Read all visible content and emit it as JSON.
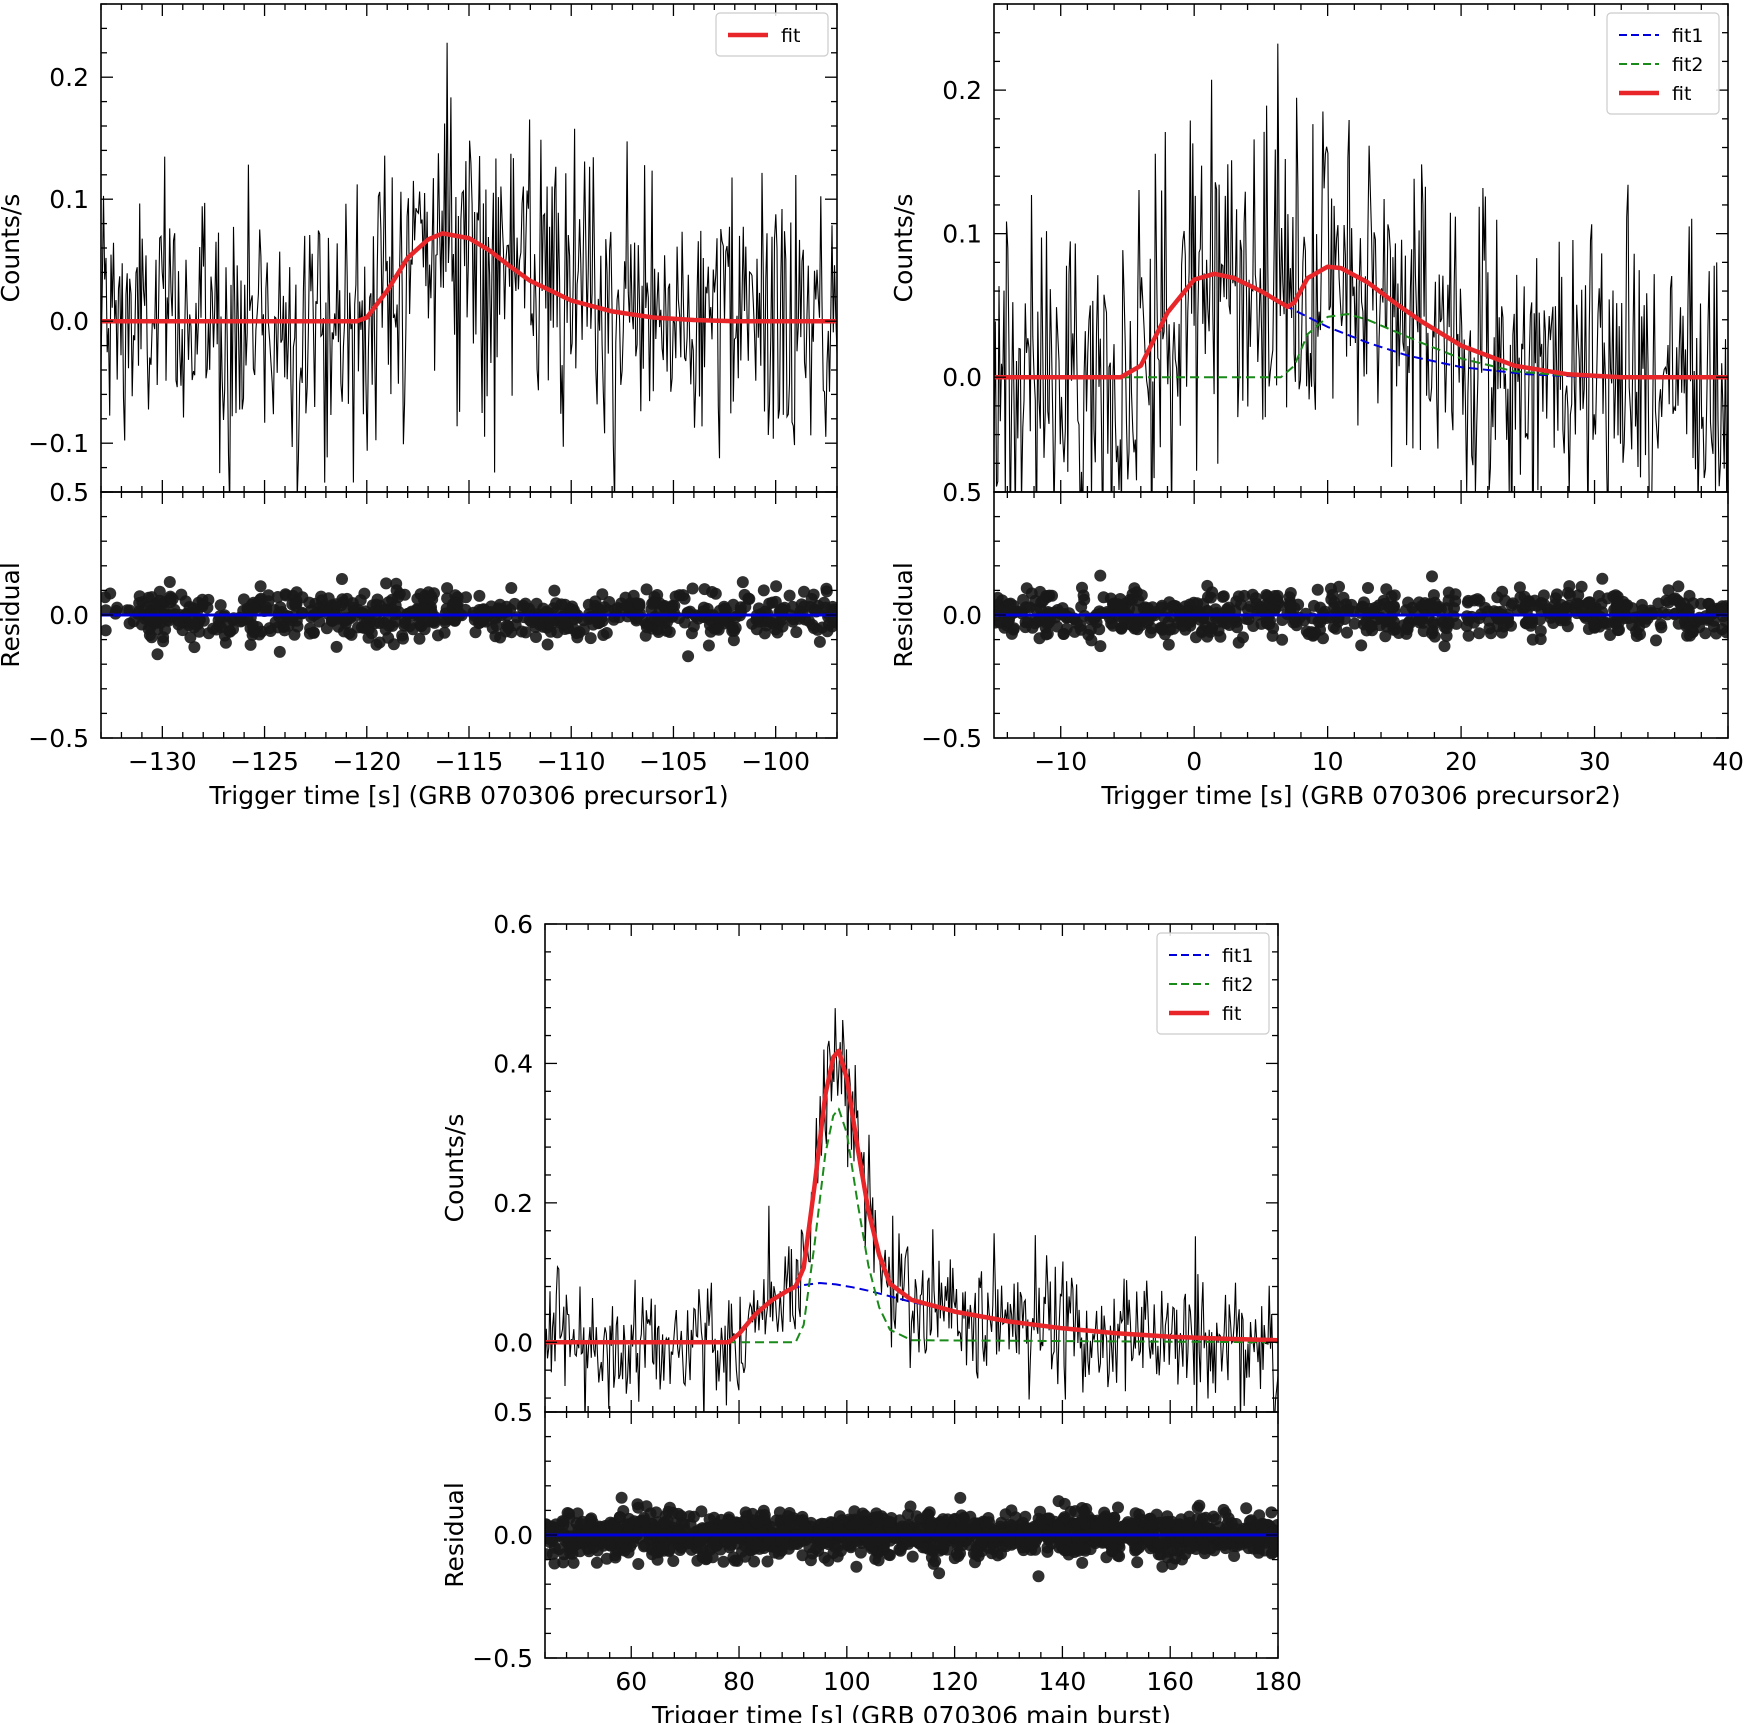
{
  "chart_data": [
    {
      "type": "line",
      "ylabel": "Counts/s",
      "residual_ylabel": "Residual",
      "xlabel": "Trigger time [s] (GRB 070306 precursor1)",
      "xlim": [
        -133,
        -97
      ],
      "ylim": [
        -0.14,
        0.26
      ],
      "residual_ylim": [
        -0.5,
        0.5
      ],
      "xticks": [
        -130,
        -125,
        -120,
        -115,
        -110,
        -105,
        -100
      ],
      "xtick_labels": [
        "−130",
        "−125",
        "−120",
        "−115",
        "−110",
        "−105",
        "−100"
      ],
      "yticks": [
        -0.1,
        0.0,
        0.1,
        0.2
      ],
      "ytick_labels": [
        "−0.1",
        "0.0",
        "0.1",
        "0.2"
      ],
      "residual_yticks": [
        -0.5,
        0.0,
        0.5
      ],
      "residual_ytick_labels": [
        "−0.5",
        "0.0",
        "0.5"
      ],
      "legend": {
        "placement": "top-right",
        "entries": [
          "fit"
        ]
      },
      "series": [
        {
          "name": "data",
          "kind": "lightcurve",
          "noise_sd": 0.055,
          "color": "#000000"
        },
        {
          "name": "fit",
          "kind": "pulse",
          "color": "#e8262a",
          "x": [
            -133,
            -120.5,
            -120,
            -119,
            -118,
            -117,
            -116.3,
            -115,
            -114,
            -113,
            -112,
            -110,
            -108,
            -106,
            -104,
            -102,
            -100,
            -97
          ],
          "values": [
            0.0,
            0.0,
            0.003,
            0.025,
            0.052,
            0.067,
            0.072,
            0.068,
            0.058,
            0.045,
            0.033,
            0.017,
            0.008,
            0.003,
            0.001,
            0.0,
            0.0,
            0.0
          ]
        }
      ],
      "residual": {
        "kind": "scatter",
        "spread": 0.05,
        "color": "#1a1a1a",
        "zero_line_color": "#0000dd"
      }
    },
    {
      "type": "line",
      "ylabel": "Counts/s",
      "residual_ylabel": "Residual",
      "xlabel": "Trigger time [s] (GRB 070306 precursor2)",
      "xlim": [
        -15,
        40
      ],
      "ylim": [
        -0.08,
        0.26
      ],
      "residual_ylim": [
        -0.5,
        0.5
      ],
      "xticks": [
        -10,
        0,
        10,
        20,
        30,
        40
      ],
      "xtick_labels": [
        "−10",
        "0",
        "10",
        "20",
        "30",
        "40"
      ],
      "yticks": [
        0.0,
        0.1,
        0.2
      ],
      "ytick_labels": [
        "0.0",
        "0.1",
        "0.2"
      ],
      "residual_yticks": [
        -0.5,
        0.0,
        0.5
      ],
      "residual_ytick_labels": [
        "−0.5",
        "0.0",
        "0.5"
      ],
      "legend": {
        "placement": "top-right",
        "entries": [
          "fit1",
          "fit2",
          "fit"
        ]
      },
      "series": [
        {
          "name": "data",
          "kind": "lightcurve",
          "noise_sd": 0.055,
          "color": "#000000"
        },
        {
          "name": "fit1",
          "kind": "pulse",
          "color": "#0000dd",
          "dash": true,
          "x": [
            -15,
            -5.5,
            -4,
            -2,
            0,
            1.5,
            3,
            5,
            7,
            10,
            13,
            16,
            20,
            25,
            30,
            40
          ],
          "values": [
            0.0,
            0.0,
            0.008,
            0.045,
            0.068,
            0.072,
            0.069,
            0.06,
            0.049,
            0.035,
            0.024,
            0.015,
            0.007,
            0.002,
            0.0,
            0.0
          ]
        },
        {
          "name": "fit2",
          "kind": "pulse",
          "color": "#1a8a1a",
          "dash": true,
          "x": [
            -15,
            6.5,
            7.5,
            8.5,
            10,
            11.5,
            13,
            15,
            17,
            20,
            24,
            28,
            40
          ],
          "values": [
            0.0,
            0.0,
            0.008,
            0.03,
            0.042,
            0.044,
            0.04,
            0.032,
            0.024,
            0.013,
            0.004,
            0.001,
            0.0
          ]
        },
        {
          "name": "fit",
          "kind": "pulse",
          "color": "#e8262a",
          "x": [
            -15,
            -5.5,
            -4,
            -2,
            0,
            1.5,
            3,
            5,
            7,
            7.5,
            8.5,
            10,
            11,
            13,
            15,
            17,
            20,
            24,
            28,
            32,
            40
          ],
          "values": [
            0.0,
            0.0,
            0.008,
            0.045,
            0.068,
            0.072,
            0.069,
            0.06,
            0.049,
            0.052,
            0.069,
            0.077,
            0.076,
            0.066,
            0.052,
            0.039,
            0.022,
            0.008,
            0.002,
            0.0,
            0.0
          ]
        }
      ],
      "residual": {
        "kind": "scatter",
        "spread": 0.05,
        "color": "#1a1a1a",
        "zero_line_color": "#0000dd"
      }
    },
    {
      "type": "line",
      "ylabel": "Counts/s",
      "residual_ylabel": "Residual",
      "xlabel": "Trigger time [s] (GRB 070306 main burst)",
      "xlim": [
        44,
        180
      ],
      "ylim": [
        -0.1,
        0.6
      ],
      "residual_ylim": [
        -0.5,
        0.5
      ],
      "xticks": [
        60,
        80,
        100,
        120,
        140,
        160,
        180
      ],
      "xtick_labels": [
        "60",
        "80",
        "100",
        "120",
        "140",
        "160",
        "180"
      ],
      "yticks": [
        0.0,
        0.2,
        0.4,
        0.6
      ],
      "ytick_labels": [
        "0.0",
        "0.2",
        "0.4",
        "0.6"
      ],
      "residual_yticks": [
        -0.5,
        0.0,
        0.5
      ],
      "residual_ytick_labels": [
        "−0.5",
        "0.0",
        "0.5"
      ],
      "legend": {
        "placement": "top-right",
        "entries": [
          "fit1",
          "fit2",
          "fit"
        ]
      },
      "series": [
        {
          "name": "data",
          "kind": "lightcurve",
          "noise_sd": 0.045,
          "color": "#000000"
        },
        {
          "name": "fit1",
          "kind": "pulse",
          "color": "#0000dd",
          "dash": true,
          "x": [
            44,
            78,
            80,
            83,
            86,
            89,
            92,
            95,
            98,
            101,
            104,
            108,
            112,
            120,
            130,
            140,
            150,
            160,
            170,
            180
          ],
          "values": [
            0.0,
            0.0,
            0.012,
            0.04,
            0.06,
            0.074,
            0.082,
            0.085,
            0.083,
            0.079,
            0.074,
            0.066,
            0.058,
            0.044,
            0.03,
            0.02,
            0.013,
            0.008,
            0.005,
            0.003
          ]
        },
        {
          "name": "fit2",
          "kind": "pulse",
          "color": "#1a8a1a",
          "dash": true,
          "x": [
            44,
            90.5,
            92,
            94,
            96,
            97.5,
            98.5,
            100,
            102,
            104,
            106,
            108,
            112,
            180
          ],
          "values": [
            0.0,
            0.0,
            0.025,
            0.14,
            0.27,
            0.325,
            0.335,
            0.3,
            0.2,
            0.11,
            0.05,
            0.018,
            0.003,
            0.0
          ]
        },
        {
          "name": "fit",
          "kind": "pulse",
          "color": "#e8262a",
          "x": [
            44,
            78,
            80,
            83,
            86,
            89,
            90.5,
            92,
            94,
            96,
            97.5,
            98.5,
            100,
            102,
            104,
            106,
            108,
            112,
            120,
            130,
            140,
            150,
            160,
            170,
            180
          ],
          "values": [
            0.0,
            0.0,
            0.012,
            0.04,
            0.06,
            0.074,
            0.08,
            0.107,
            0.224,
            0.355,
            0.409,
            0.418,
            0.379,
            0.279,
            0.189,
            0.125,
            0.084,
            0.061,
            0.044,
            0.03,
            0.02,
            0.013,
            0.008,
            0.005,
            0.003
          ]
        }
      ],
      "residual": {
        "kind": "scatter",
        "spread": 0.045,
        "color": "#1a1a1a",
        "zero_line_color": "#0000dd"
      }
    }
  ]
}
